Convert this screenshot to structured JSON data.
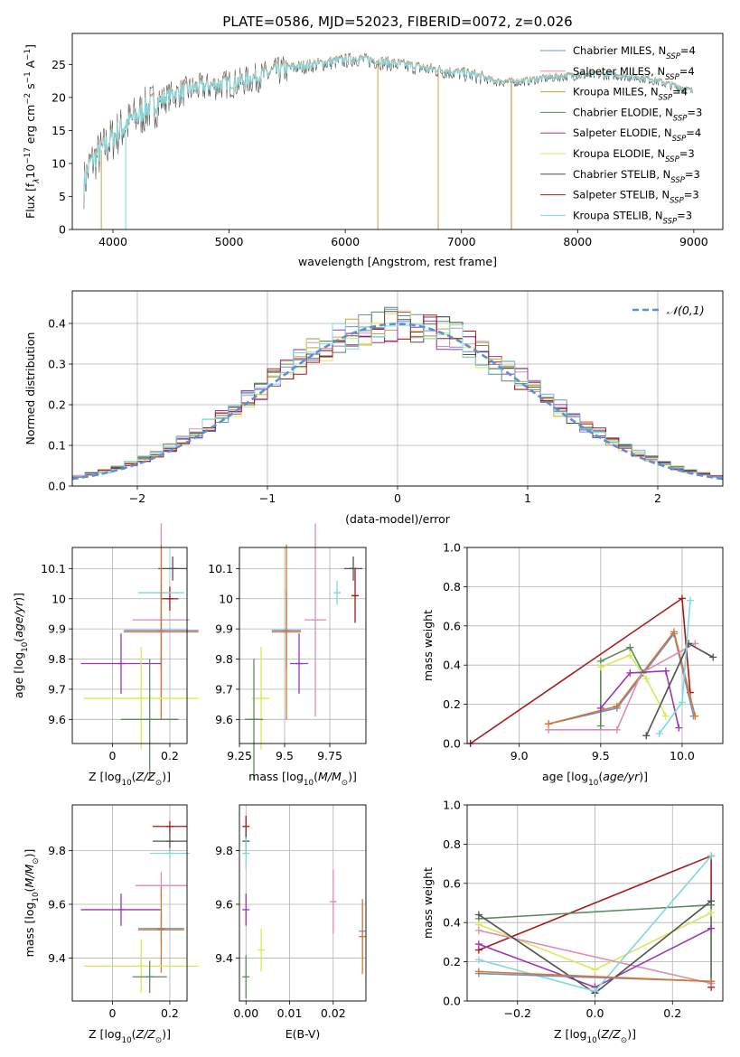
{
  "title": "PLATE=0586, MJD=52023, FIBERID=0072, z=0.026",
  "colors": {
    "chabrier_miles": "#6b8fd6",
    "salpeter_miles": "#e08ab8",
    "kroupa_miles": "#c9a23a",
    "chabrier_elodie": "#5c8a5c",
    "salpeter_elodie": "#9a35b8",
    "kroupa_elodie": "#d9e855",
    "chabrier_stelib": "#505050",
    "salpeter_stelib": "#a81a1a",
    "kroupa_stelib": "#7fd8e0",
    "gauss": "#5b8fd9",
    "orange": "#d9772a"
  },
  "legend_spectrum": [
    {
      "label": "Chabrier MILES, N",
      "sub": "SSP",
      "suffix": "=4",
      "color": "#6b8fd6"
    },
    {
      "label": "Salpeter MILES, N",
      "sub": "SSP",
      "suffix": "=4",
      "color": "#e08ab8"
    },
    {
      "label": "Kroupa MILES, N",
      "sub": "SSP",
      "suffix": "=4",
      "color": "#c9a23a"
    },
    {
      "label": "Chabrier ELODIE, N",
      "sub": "SSP",
      "suffix": "=3",
      "color": "#5c8a5c"
    },
    {
      "label": "Salpeter ELODIE, N",
      "sub": "SSP",
      "suffix": "=4",
      "color": "#9a35b8"
    },
    {
      "label": "Kroupa ELODIE, N",
      "sub": "SSP",
      "suffix": "=3",
      "color": "#d9e855"
    },
    {
      "label": "Chabrier STELIB, N",
      "sub": "SSP",
      "suffix": "=3",
      "color": "#505050"
    },
    {
      "label": "Salpeter STELIB, N",
      "sub": "SSP",
      "suffix": "=3",
      "color": "#a81a1a"
    },
    {
      "label": "Kroupa STELIB, N",
      "sub": "SSP",
      "suffix": "=3",
      "color": "#7fd8e0"
    }
  ],
  "chart_data": [
    {
      "id": "spectrum",
      "type": "line",
      "xlabel": "wavelength [Angstrom, rest frame]",
      "ylabel": "Flux [f_λ 10^-17 erg cm^-2 s^-1 A^-1]",
      "ylabel_parts": {
        "a": "Flux [f",
        "b": "λ",
        "c": "10",
        "d": "−17",
        "e": " erg cm",
        "f": "−2",
        "g": " s",
        "h": "−1",
        "i": " A",
        "j": "−1",
        "k": "]"
      },
      "xlim": [
        3650,
        9250
      ],
      "ylim": [
        0,
        29.7
      ],
      "xticks": [
        4000,
        5000,
        6000,
        7000,
        8000,
        9000
      ],
      "yticks": [
        0,
        5,
        10,
        15,
        20,
        25
      ],
      "continuum": [
        [
          3750,
          7
        ],
        [
          3800,
          10
        ],
        [
          3850,
          11
        ],
        [
          3950,
          13
        ],
        [
          4050,
          15
        ],
        [
          4150,
          16.5
        ],
        [
          4300,
          18.5
        ],
        [
          4500,
          20.5
        ],
        [
          4700,
          21.5
        ],
        [
          4900,
          22
        ],
        [
          5100,
          22.5
        ],
        [
          5300,
          23.5
        ],
        [
          5500,
          24.5
        ],
        [
          5700,
          25
        ],
        [
          5900,
          25.5
        ],
        [
          6100,
          26
        ],
        [
          6300,
          25.5
        ],
        [
          6500,
          25
        ],
        [
          6700,
          24.5
        ],
        [
          6900,
          24
        ],
        [
          7100,
          23.5
        ],
        [
          7300,
          22.5
        ],
        [
          7500,
          22.5
        ],
        [
          7700,
          23
        ],
        [
          8000,
          23.5
        ],
        [
          8300,
          23.5
        ],
        [
          8600,
          23
        ],
        [
          8800,
          22
        ],
        [
          8990,
          21
        ]
      ],
      "drops": [
        {
          "x": 3900,
          "color": "#c9a23a"
        },
        {
          "x": 4110,
          "color": "#7fd8e0"
        },
        {
          "x": 6280,
          "color": "#c9a23a"
        },
        {
          "x": 6800,
          "color": "#c9a23a"
        },
        {
          "x": 7430,
          "color": "#d9772a"
        }
      ]
    },
    {
      "id": "residuals",
      "type": "histogram",
      "xlabel": "(data-model)/error",
      "ylabel": "Normed distribution",
      "legend": "𝒩(0,1)",
      "xlim": [
        -2.5,
        2.5
      ],
      "ylim": [
        0,
        0.48
      ],
      "xticks": [
        -2,
        -1,
        0,
        1,
        2
      ],
      "xtick_labels": [
        "−2",
        "−1",
        "0",
        "1",
        "2"
      ],
      "yticks": [
        0.0,
        0.1,
        0.2,
        0.3,
        0.4
      ],
      "ytick_labels": [
        "0.0",
        "0.1",
        "0.2",
        "0.3",
        "0.4"
      ],
      "bin_width": 0.1
    },
    {
      "id": "age_vs_Z",
      "type": "scatter",
      "xlabel": "Z [log10(Z/Z⊙)]",
      "ylabel": "age [log10(age/yr)]",
      "xlim": [
        -0.14,
        0.26
      ],
      "ylim": [
        9.52,
        10.17
      ],
      "xticks": [
        0.0,
        0.2
      ],
      "yticks": [
        9.6,
        9.7,
        9.8,
        9.9,
        10.0,
        10.1
      ],
      "points": [
        {
          "color": "#505050",
          "x": 0.21,
          "y": 10.1,
          "xerr": 0.05,
          "yerr": 0.04
        },
        {
          "color": "#a81a1a",
          "x": 0.2,
          "y": 10.0,
          "xerr": 0.03,
          "yerr": 0.04
        },
        {
          "color": "#7fd8e0",
          "x": 0.17,
          "y": 10.02,
          "xerr": 0.08,
          "yerr": 0.03
        },
        {
          "color": "#e08ab8",
          "x": 0.17,
          "y": 9.93,
          "xerr": 0.1,
          "yerr": 0.32
        },
        {
          "color": "#6b8fd6",
          "x": 0.17,
          "y": 9.895,
          "xerr": 0.13,
          "yerr": 0.13
        },
        {
          "color": "#d9772a",
          "x": 0.17,
          "y": 9.89,
          "xerr": 0.13,
          "yerr": 0.29
        },
        {
          "color": "#9a35b8",
          "x": 0.03,
          "y": 9.785,
          "xerr": 0.14,
          "yerr": 0.1
        },
        {
          "color": "#d9e855",
          "x": 0.1,
          "y": 9.67,
          "xerr": 0.2,
          "yerr": 0.17
        },
        {
          "color": "#5c8a5c",
          "x": 0.13,
          "y": 9.6,
          "xerr": 0.1,
          "yerr": 0.2
        }
      ]
    },
    {
      "id": "age_vs_mass",
      "type": "scatter",
      "xlabel": "mass [log10(M/M⊙)]",
      "xlim": [
        9.25,
        9.95
      ],
      "ylim": [
        9.52,
        10.17
      ],
      "xticks": [
        9.25,
        9.5,
        9.75
      ],
      "yticks": [
        9.6,
        9.7,
        9.8,
        9.9,
        10.0,
        10.1
      ],
      "points": [
        {
          "color": "#505050",
          "x": 9.88,
          "y": 10.1,
          "xerr": 0.05,
          "yerr": 0.04
        },
        {
          "color": "#a81a1a",
          "x": 9.89,
          "y": 10.01,
          "xerr": 0.02,
          "yerr": 0.09
        },
        {
          "color": "#7fd8e0",
          "x": 9.79,
          "y": 10.02,
          "xerr": 0.02,
          "yerr": 0.04
        },
        {
          "color": "#e08ab8",
          "x": 9.67,
          "y": 9.93,
          "xerr": 0.06,
          "yerr": 0.32
        },
        {
          "color": "#6b8fd6",
          "x": 9.51,
          "y": 9.895,
          "xerr": 0.08,
          "yerr": 0.13
        },
        {
          "color": "#d9772a",
          "x": 9.51,
          "y": 9.89,
          "xerr": 0.08,
          "yerr": 0.29
        },
        {
          "color": "#9a35b8",
          "x": 9.58,
          "y": 9.785,
          "xerr": 0.05,
          "yerr": 0.1
        },
        {
          "color": "#d9e855",
          "x": 9.37,
          "y": 9.67,
          "xerr": 0.05,
          "yerr": 0.17
        },
        {
          "color": "#5c8a5c",
          "x": 9.33,
          "y": 9.6,
          "xerr": 0.05,
          "yerr": 0.2
        }
      ]
    },
    {
      "id": "weight_vs_age",
      "type": "line",
      "xlabel": "age [log10(age/yr)]",
      "ylabel": "mass weight",
      "xlim": [
        8.68,
        10.25
      ],
      "ylim": [
        0,
        1.0
      ],
      "xticks": [
        9.0,
        9.5,
        10.0
      ],
      "yticks": [
        0.0,
        0.2,
        0.4,
        0.6,
        0.8,
        1.0
      ],
      "series": [
        {
          "color": "#a81a1a",
          "points": [
            [
              8.7,
              0.0
            ],
            [
              10.0,
              0.74
            ],
            [
              10.05,
              0.26
            ]
          ]
        },
        {
          "color": "#6b8fd6",
          "points": [
            [
              9.18,
              0.1
            ],
            [
              9.6,
              0.18
            ],
            [
              9.95,
              0.56
            ],
            [
              10.07,
              0.14
            ]
          ]
        },
        {
          "color": "#d9772a",
          "points": [
            [
              9.18,
              0.1
            ],
            [
              9.6,
              0.19
            ],
            [
              9.95,
              0.57
            ],
            [
              10.08,
              0.14
            ]
          ]
        },
        {
          "color": "#e08ab8",
          "points": [
            [
              9.18,
              0.07
            ],
            [
              9.6,
              0.07
            ],
            [
              9.75,
              0.36
            ],
            [
              10.08,
              0.51
            ]
          ]
        },
        {
          "color": "#5c8a5c",
          "points": [
            [
              9.5,
              0.09
            ],
            [
              9.5,
              0.42
            ],
            [
              9.68,
              0.49
            ],
            [
              9.76,
              0.36
            ]
          ]
        },
        {
          "color": "#d9e855",
          "points": [
            [
              9.5,
              0.39
            ],
            [
              9.68,
              0.45
            ],
            [
              9.78,
              0.33
            ],
            [
              9.9,
              0.14
            ]
          ]
        },
        {
          "color": "#9a35b8",
          "points": [
            [
              9.5,
              0.18
            ],
            [
              9.68,
              0.36
            ],
            [
              9.9,
              0.37
            ],
            [
              9.98,
              0.08
            ]
          ]
        },
        {
          "color": "#505050",
          "points": [
            [
              9.78,
              0.04
            ],
            [
              10.04,
              0.51
            ],
            [
              10.19,
              0.44
            ]
          ]
        },
        {
          "color": "#7fd8e0",
          "points": [
            [
              9.86,
              0.05
            ],
            [
              10.0,
              0.21
            ],
            [
              10.05,
              0.73
            ]
          ]
        }
      ]
    },
    {
      "id": "mass_vs_Z",
      "type": "scatter",
      "xlabel": "Z [log10(Z/Z⊙)]",
      "ylabel": "mass [log10(M/M⊙)]",
      "xlim": [
        -0.14,
        0.26
      ],
      "ylim": [
        9.24,
        9.97
      ],
      "xticks": [
        0.0,
        0.2
      ],
      "yticks": [
        9.4,
        9.6,
        9.8
      ],
      "points": [
        {
          "color": "#a81a1a",
          "x": 0.2,
          "y": 9.89,
          "xerr": 0.06,
          "yerr": 0.02
        },
        {
          "color": "#505050",
          "x": 0.2,
          "y": 9.835,
          "xerr": 0.06,
          "yerr": 0.04
        },
        {
          "color": "#7fd8e0",
          "x": 0.2,
          "y": 9.79,
          "xerr": 0.07,
          "yerr": 0.02
        },
        {
          "color": "#e08ab8",
          "x": 0.17,
          "y": 9.67,
          "xerr": 0.09,
          "yerr": 0.05
        },
        {
          "color": "#9a35b8",
          "x": 0.03,
          "y": 9.58,
          "xerr": 0.14,
          "yerr": 0.06
        },
        {
          "color": "#6b8fd6",
          "x": 0.17,
          "y": 9.51,
          "xerr": 0.08,
          "yerr": 0.06
        },
        {
          "color": "#d9772a",
          "x": 0.17,
          "y": 9.505,
          "xerr": 0.08,
          "yerr": 0.16
        },
        {
          "color": "#d9e855",
          "x": 0.1,
          "y": 9.37,
          "xerr": 0.2,
          "yerr": 0.1
        },
        {
          "color": "#5c8a5c",
          "x": 0.13,
          "y": 9.33,
          "xerr": 0.06,
          "yerr": 0.06
        }
      ]
    },
    {
      "id": "mass_vs_ebv",
      "type": "scatter",
      "xlabel": "E(B-V)",
      "xlim": [
        -0.0015,
        0.0275
      ],
      "ylim": [
        9.24,
        9.97
      ],
      "xticks": [
        0.0,
        0.01,
        0.02
      ],
      "xtick_labels": [
        "0.00",
        "0.01",
        "0.02"
      ],
      "yticks": [
        9.4,
        9.6,
        9.8
      ],
      "points": [
        {
          "color": "#a81a1a",
          "x": 0.0,
          "y": 9.89,
          "yerr": 0.04
        },
        {
          "color": "#505050",
          "x": 0.0,
          "y": 9.835,
          "yerr": 0.04
        },
        {
          "color": "#7fd8e0",
          "x": 0.0,
          "y": 9.79,
          "yerr": 0.06
        },
        {
          "color": "#9a35b8",
          "x": 0.0,
          "y": 9.58,
          "yerr": 0.06
        },
        {
          "color": "#5c8a5c",
          "x": 0.0,
          "y": 9.33,
          "yerr": 0.08
        },
        {
          "color": "#d9e855",
          "x": 0.0035,
          "y": 9.43,
          "yerr": 0.08
        },
        {
          "color": "#e08ab8",
          "x": 0.02,
          "y": 9.61,
          "yerr": 0.12
        },
        {
          "color": "#6b8fd6",
          "x": 0.0267,
          "y": 9.5,
          "yerr": 0.1
        },
        {
          "color": "#d9772a",
          "x": 0.0267,
          "y": 9.48,
          "yerr": 0.14
        }
      ]
    },
    {
      "id": "weight_vs_Z",
      "type": "line",
      "xlabel": "Z [log10(Z/Z⊙)]",
      "ylabel": "mass weight",
      "xlim": [
        -0.33,
        0.33
      ],
      "ylim": [
        0,
        1.0
      ],
      "xticks": [
        -0.2,
        0.0,
        0.2
      ],
      "xtick_labels": [
        "−0.2",
        "0.0",
        "0.2"
      ],
      "yticks": [
        0.0,
        0.2,
        0.4,
        0.6,
        0.8,
        1.0
      ],
      "series": [
        {
          "color": "#a81a1a",
          "points": [
            [
              -0.3,
              0.26
            ],
            [
              0.3,
              0.74
            ],
            [
              0.3,
              0.07
            ]
          ]
        },
        {
          "color": "#5c8a5c",
          "points": [
            [
              -0.3,
              0.42
            ],
            [
              0.3,
              0.49
            ],
            [
              0.3,
              0.09
            ]
          ]
        },
        {
          "color": "#d9e855",
          "points": [
            [
              -0.3,
              0.39
            ],
            [
              0.0,
              0.16
            ],
            [
              0.3,
              0.45
            ]
          ]
        },
        {
          "color": "#e08ab8",
          "points": [
            [
              -0.3,
              0.36
            ],
            [
              0.3,
              0.09
            ]
          ]
        },
        {
          "color": "#9a35b8",
          "points": [
            [
              -0.3,
              0.29
            ],
            [
              0.0,
              0.07
            ],
            [
              0.3,
              0.37
            ]
          ]
        },
        {
          "color": "#505050",
          "points": [
            [
              -0.3,
              0.44
            ],
            [
              0.0,
              0.04
            ],
            [
              0.3,
              0.51
            ]
          ]
        },
        {
          "color": "#7fd8e0",
          "points": [
            [
              -0.3,
              0.21
            ],
            [
              0.0,
              0.05
            ],
            [
              0.3,
              0.74
            ]
          ]
        },
        {
          "color": "#6b8fd6",
          "points": [
            [
              -0.3,
              0.14
            ],
            [
              0.3,
              0.1
            ]
          ]
        },
        {
          "color": "#d9772a",
          "points": [
            [
              -0.3,
              0.15
            ],
            [
              0.3,
              0.1
            ]
          ]
        }
      ]
    }
  ]
}
